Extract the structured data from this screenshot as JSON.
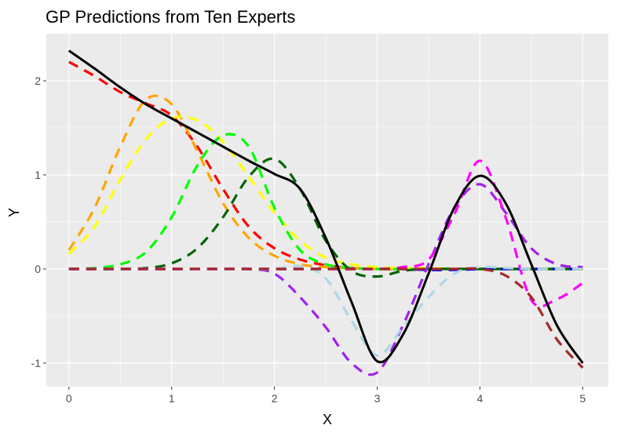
{
  "chart_data": {
    "type": "line",
    "title": "GP Predictions from Ten Experts",
    "xlabel": "X",
    "ylabel": "Y",
    "xlim": [
      -0.22,
      5.25
    ],
    "ylim": [
      -1.25,
      2.5
    ],
    "grid": true,
    "legend": "none",
    "panel_background": "#ebebeb",
    "grid_color": "#ffffff",
    "x_ticks": [
      {
        "value": 0,
        "label": "0"
      },
      {
        "value": 1,
        "label": "1"
      },
      {
        "value": 2,
        "label": "2"
      },
      {
        "value": 3,
        "label": "3"
      },
      {
        "value": 4,
        "label": "4"
      },
      {
        "value": 5,
        "label": "5"
      }
    ],
    "y_ticks": [
      {
        "value": -1,
        "label": "-1"
      },
      {
        "value": 0,
        "label": "0"
      },
      {
        "value": 1,
        "label": "1"
      },
      {
        "value": 2,
        "label": "2"
      }
    ],
    "x": [
      0,
      0.25,
      0.5,
      0.75,
      1,
      1.25,
      1.5,
      1.75,
      2,
      2.25,
      2.5,
      2.75,
      3,
      3.25,
      3.5,
      3.75,
      4,
      4.25,
      4.5,
      4.75,
      5
    ],
    "series": [
      {
        "color": "#000000",
        "dashed": false,
        "values": [
          2.32,
          2.13,
          1.93,
          1.75,
          1.6,
          1.45,
          1.3,
          1.15,
          1.01,
          0.85,
          0.33,
          -0.35,
          -0.98,
          -0.7,
          -0.05,
          0.65,
          0.99,
          0.7,
          0.05,
          -0.6,
          -1.0
        ]
      },
      {
        "color": "#ff0000",
        "dashed": true,
        "values": [
          2.2,
          2.05,
          1.88,
          1.76,
          1.63,
          1.3,
          0.85,
          0.45,
          0.22,
          0.1,
          0.04,
          0.01,
          0,
          0,
          0,
          0,
          0,
          0,
          0,
          0,
          0
        ]
      },
      {
        "color": "#ffa500",
        "dashed": true,
        "values": [
          0.2,
          0.65,
          1.3,
          1.8,
          1.75,
          1.25,
          0.7,
          0.33,
          0.14,
          0.05,
          0.02,
          0.01,
          0,
          0,
          0,
          0,
          0,
          0,
          0,
          0,
          0
        ]
      },
      {
        "color": "#ffff00",
        "dashed": true,
        "values": [
          0.16,
          0.45,
          0.95,
          1.38,
          1.6,
          1.58,
          1.35,
          0.98,
          0.6,
          0.3,
          0.12,
          0.05,
          0.02,
          0.01,
          0.01,
          0,
          0,
          0,
          0,
          0,
          0
        ]
      },
      {
        "color": "#00ff00",
        "dashed": true,
        "values": [
          0,
          0.01,
          0.05,
          0.18,
          0.55,
          1.1,
          1.42,
          1.3,
          0.65,
          0.2,
          0.05,
          0.01,
          0,
          0,
          0,
          0,
          0,
          0,
          0,
          0,
          0
        ]
      },
      {
        "color": "#006400",
        "dashed": true,
        "values": [
          0,
          0,
          0,
          0.01,
          0.06,
          0.22,
          0.55,
          0.98,
          1.17,
          0.85,
          0.3,
          -0.02,
          -0.08,
          -0.02,
          0,
          0,
          0,
          0,
          0,
          0,
          0
        ]
      },
      {
        "color": "#0000ff",
        "dashed": true,
        "values": [
          0,
          0,
          0,
          0,
          0,
          0,
          0,
          0,
          0,
          0,
          0,
          0,
          0,
          0,
          -0.01,
          -0.01,
          0,
          0,
          0,
          0,
          0
        ]
      },
      {
        "color": "#a020f0",
        "dashed": true,
        "values": [
          0,
          0,
          0,
          0,
          0,
          0,
          0,
          0,
          -0.05,
          -0.3,
          -0.62,
          -1.0,
          -1.1,
          -0.6,
          0.05,
          0.65,
          0.9,
          0.6,
          0.22,
          0.05,
          0.02
        ]
      },
      {
        "color": "#ff00ff",
        "dashed": true,
        "values": [
          0,
          0,
          0,
          0,
          0,
          0,
          0,
          0,
          0,
          0,
          0,
          0,
          0,
          0.02,
          0.1,
          0.58,
          1.15,
          0.55,
          -0.33,
          -0.32,
          -0.15
        ]
      },
      {
        "color": "#add8e6",
        "dashed": true,
        "values": [
          0,
          0,
          0,
          0,
          0,
          0,
          0,
          0,
          0,
          0.03,
          -0.1,
          -0.55,
          -0.92,
          -0.62,
          -0.3,
          -0.05,
          0.02,
          0.01,
          0,
          0,
          0
        ]
      },
      {
        "color": "#a52a2a",
        "dashed": true,
        "values": [
          0,
          0,
          0,
          0,
          0,
          0,
          0,
          0,
          0,
          0,
          0,
          0,
          0,
          0,
          0,
          0,
          0,
          -0.07,
          -0.3,
          -0.75,
          -1.05
        ]
      }
    ]
  }
}
